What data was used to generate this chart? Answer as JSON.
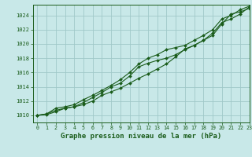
{
  "title": "Graphe pression niveau de la mer (hPa)",
  "bg_color": "#c8e8e8",
  "grid_color": "#a0c8c8",
  "line_color": "#1a5c1a",
  "marker_color": "#1a5c1a",
  "xlim": [
    -0.5,
    23
  ],
  "ylim": [
    1009.0,
    1025.5
  ],
  "xticks": [
    0,
    1,
    2,
    3,
    4,
    5,
    6,
    7,
    8,
    9,
    10,
    11,
    12,
    13,
    14,
    15,
    16,
    17,
    18,
    19,
    20,
    21,
    22,
    23
  ],
  "yticks": [
    1010,
    1012,
    1014,
    1016,
    1018,
    1020,
    1022,
    1024
  ],
  "series1_x": [
    0,
    1,
    2,
    3,
    4,
    5,
    6,
    7,
    8,
    9,
    10,
    11,
    12,
    13,
    14,
    15,
    16,
    17,
    18,
    19,
    20,
    21,
    22,
    23
  ],
  "series1_y": [
    1010.0,
    1010.2,
    1010.7,
    1011.0,
    1011.2,
    1011.5,
    1012.0,
    1012.8,
    1013.3,
    1013.8,
    1014.5,
    1015.2,
    1015.8,
    1016.5,
    1017.2,
    1018.2,
    1019.3,
    1019.8,
    1020.5,
    1021.2,
    1022.8,
    1024.2,
    1024.5,
    1025.0
  ],
  "series2_x": [
    0,
    1,
    2,
    3,
    4,
    5,
    6,
    7,
    8,
    9,
    10,
    11,
    12,
    13,
    14,
    15,
    16,
    17,
    18,
    19,
    20,
    21,
    22,
    23
  ],
  "series2_y": [
    1010.0,
    1010.1,
    1010.5,
    1011.0,
    1011.2,
    1011.8,
    1012.5,
    1013.2,
    1014.0,
    1014.5,
    1015.5,
    1016.8,
    1017.3,
    1017.7,
    1018.0,
    1018.5,
    1019.2,
    1019.8,
    1020.5,
    1021.5,
    1023.0,
    1023.5,
    1024.2,
    1025.2
  ],
  "series3_x": [
    0,
    1,
    2,
    3,
    4,
    5,
    6,
    7,
    8,
    9,
    10,
    11,
    12,
    13,
    14,
    15,
    16,
    17,
    18,
    19,
    20,
    21,
    22,
    23
  ],
  "series3_y": [
    1010.0,
    1010.2,
    1011.0,
    1011.2,
    1011.5,
    1012.2,
    1012.8,
    1013.5,
    1014.2,
    1015.0,
    1016.0,
    1017.2,
    1018.0,
    1018.5,
    1019.2,
    1019.5,
    1019.8,
    1020.5,
    1021.2,
    1022.0,
    1023.5,
    1024.0,
    1024.8,
    1025.3
  ],
  "ylabel_fontsize": 5.5,
  "xlabel_fontsize": 5.2,
  "title_fontsize": 6.5
}
